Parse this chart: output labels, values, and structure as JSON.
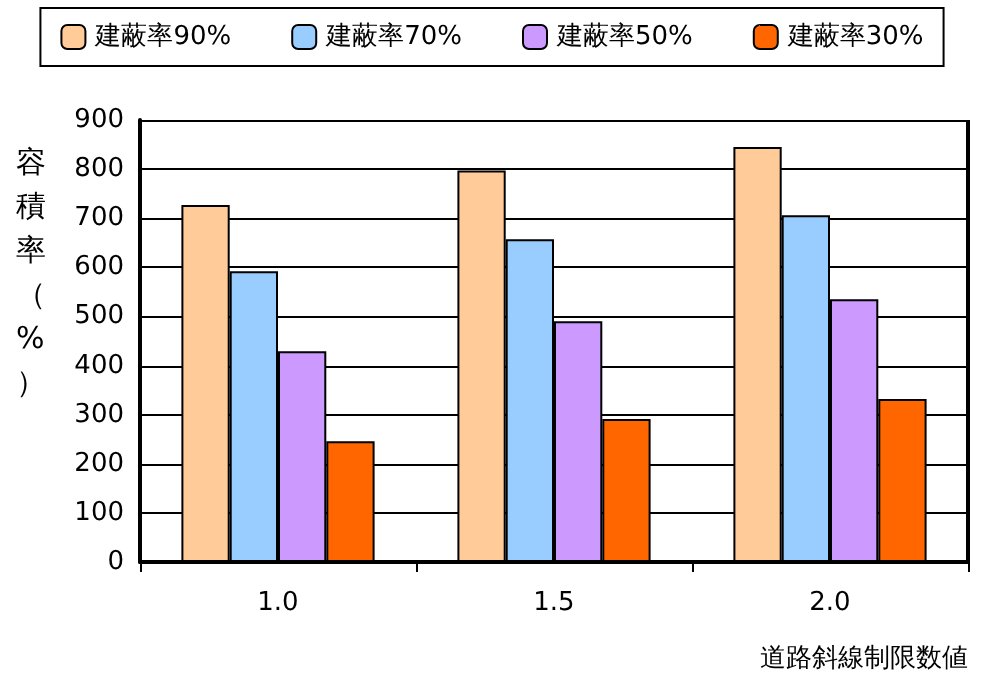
{
  "chart_data": {
    "type": "bar",
    "xlabel": "道路斜線制限数値",
    "ylabel": "容積率（%）",
    "categories": [
      "1.0",
      "1.5",
      "2.0"
    ],
    "series": [
      {
        "name": "建蔽率90%",
        "color": "#ffcc99",
        "values": [
          727,
          797,
          845
        ]
      },
      {
        "name": "建蔽率70%",
        "color": "#99ccff",
        "values": [
          592,
          657,
          706
        ]
      },
      {
        "name": "建蔽率50%",
        "color": "#cc99ff",
        "values": [
          429,
          490,
          535
        ]
      },
      {
        "name": "建蔽率30%",
        "color": "#ff6600",
        "values": [
          246,
          291,
          332
        ]
      }
    ],
    "ylim": [
      0,
      900
    ],
    "yticks": [
      0,
      100,
      200,
      300,
      400,
      500,
      600,
      700,
      800,
      900
    ],
    "grid": "y",
    "legend": "top"
  }
}
